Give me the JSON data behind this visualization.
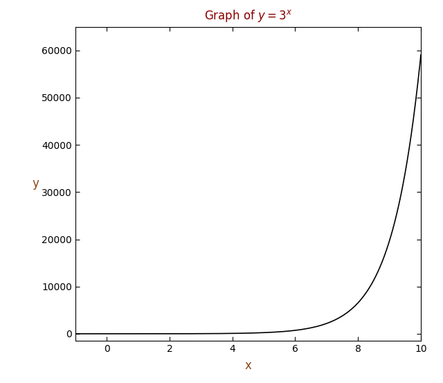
{
  "title": "Graph of y = 3",
  "xlabel": "x",
  "ylabel": "y",
  "x_min": -1,
  "x_max": 10,
  "y_min": -1500,
  "y_max": 65000,
  "x_ticks": [
    0,
    2,
    4,
    6,
    8,
    10
  ],
  "y_ticks": [
    0,
    10000,
    20000,
    30000,
    40000,
    50000,
    60000
  ],
  "line_color": "black",
  "line_width": 1.2,
  "bg_color": "white",
  "title_color": "#8B0000",
  "label_color": "#8B4513",
  "tick_label_color": "black",
  "figsize": [
    6.4,
    5.53
  ],
  "dpi": 100
}
